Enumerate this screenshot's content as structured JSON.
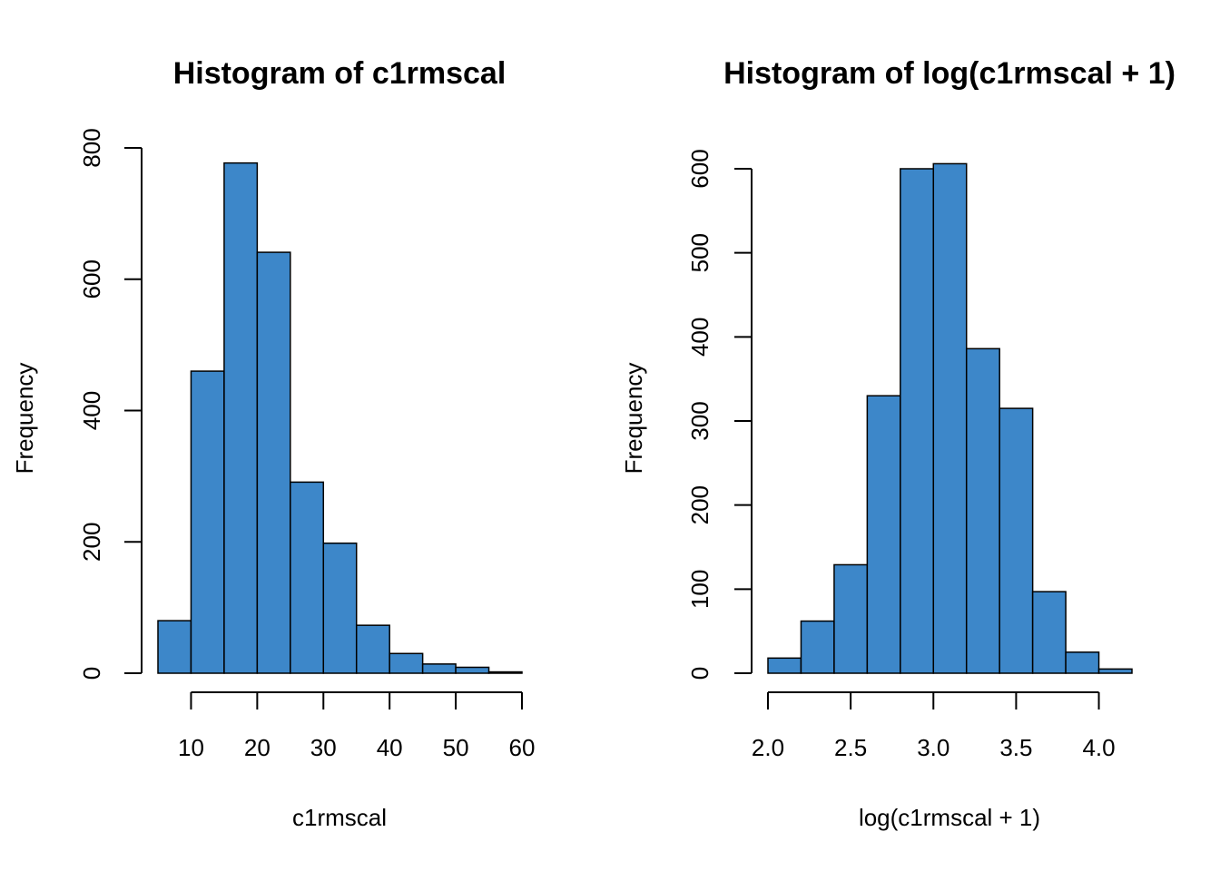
{
  "bar_color": "#3D87C9",
  "chart_data": [
    {
      "type": "bar",
      "title": "Histogram of c1rmscal",
      "xlabel": "c1rmscal",
      "ylabel": "Frequency",
      "bin_edges": [
        5,
        10,
        15,
        20,
        25,
        30,
        35,
        40,
        45,
        50,
        55,
        60
      ],
      "values": [
        80,
        460,
        777,
        641,
        291,
        198,
        73,
        30,
        14,
        9,
        2
      ],
      "xlim": [
        5,
        60
      ],
      "ylim": [
        0,
        800
      ],
      "xticks": [
        10,
        20,
        30,
        40,
        50,
        60
      ],
      "xtick_labels": [
        "10",
        "20",
        "30",
        "40",
        "50",
        "60"
      ],
      "yticks": [
        0,
        200,
        400,
        600,
        800
      ],
      "ytick_labels": [
        "0",
        "200",
        "400",
        "600",
        "800"
      ],
      "grid": false
    },
    {
      "type": "bar",
      "title": "Histogram of log(c1rmscal + 1)",
      "xlabel": "log(c1rmscal + 1)",
      "ylabel": "Frequency",
      "bin_edges": [
        2.0,
        2.2,
        2.4,
        2.6,
        2.8,
        3.0,
        3.2,
        3.4,
        3.6,
        3.8,
        4.0,
        4.2
      ],
      "values": [
        18,
        62,
        129,
        330,
        600,
        606,
        386,
        315,
        97,
        25,
        5
      ],
      "xlim": [
        2.0,
        4.2
      ],
      "ylim": [
        0,
        600
      ],
      "xticks": [
        2.0,
        2.5,
        3.0,
        3.5,
        4.0
      ],
      "xtick_labels": [
        "2.0",
        "2.5",
        "3.0",
        "3.5",
        "4.0"
      ],
      "yticks": [
        0,
        100,
        200,
        300,
        400,
        500,
        600
      ],
      "ytick_labels": [
        "0",
        "100",
        "200",
        "300",
        "400",
        "500",
        "600"
      ],
      "grid": false
    }
  ]
}
